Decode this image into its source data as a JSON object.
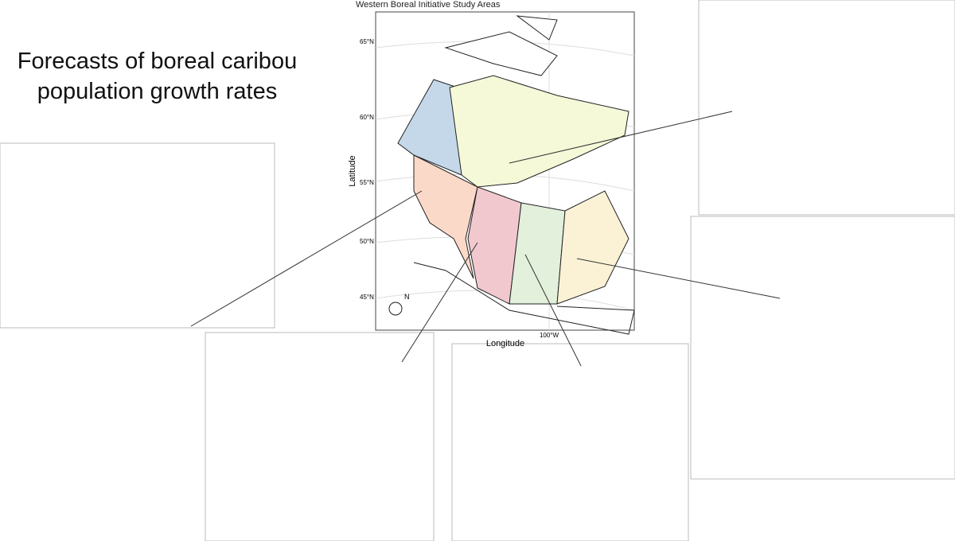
{
  "slide": {
    "title": "Forecasts of boreal caribou population growth rates"
  },
  "map": {
    "title": "Western Boreal Initiative Study Areas",
    "y_axis_label": "Latitude",
    "x_axis_label": "Longitude",
    "lat_labels": [
      "65°N",
      "60°N",
      "55°N",
      "50°N",
      "45°N"
    ],
    "lon_labels": [
      "100°W"
    ],
    "north_label": "N"
  }
}
